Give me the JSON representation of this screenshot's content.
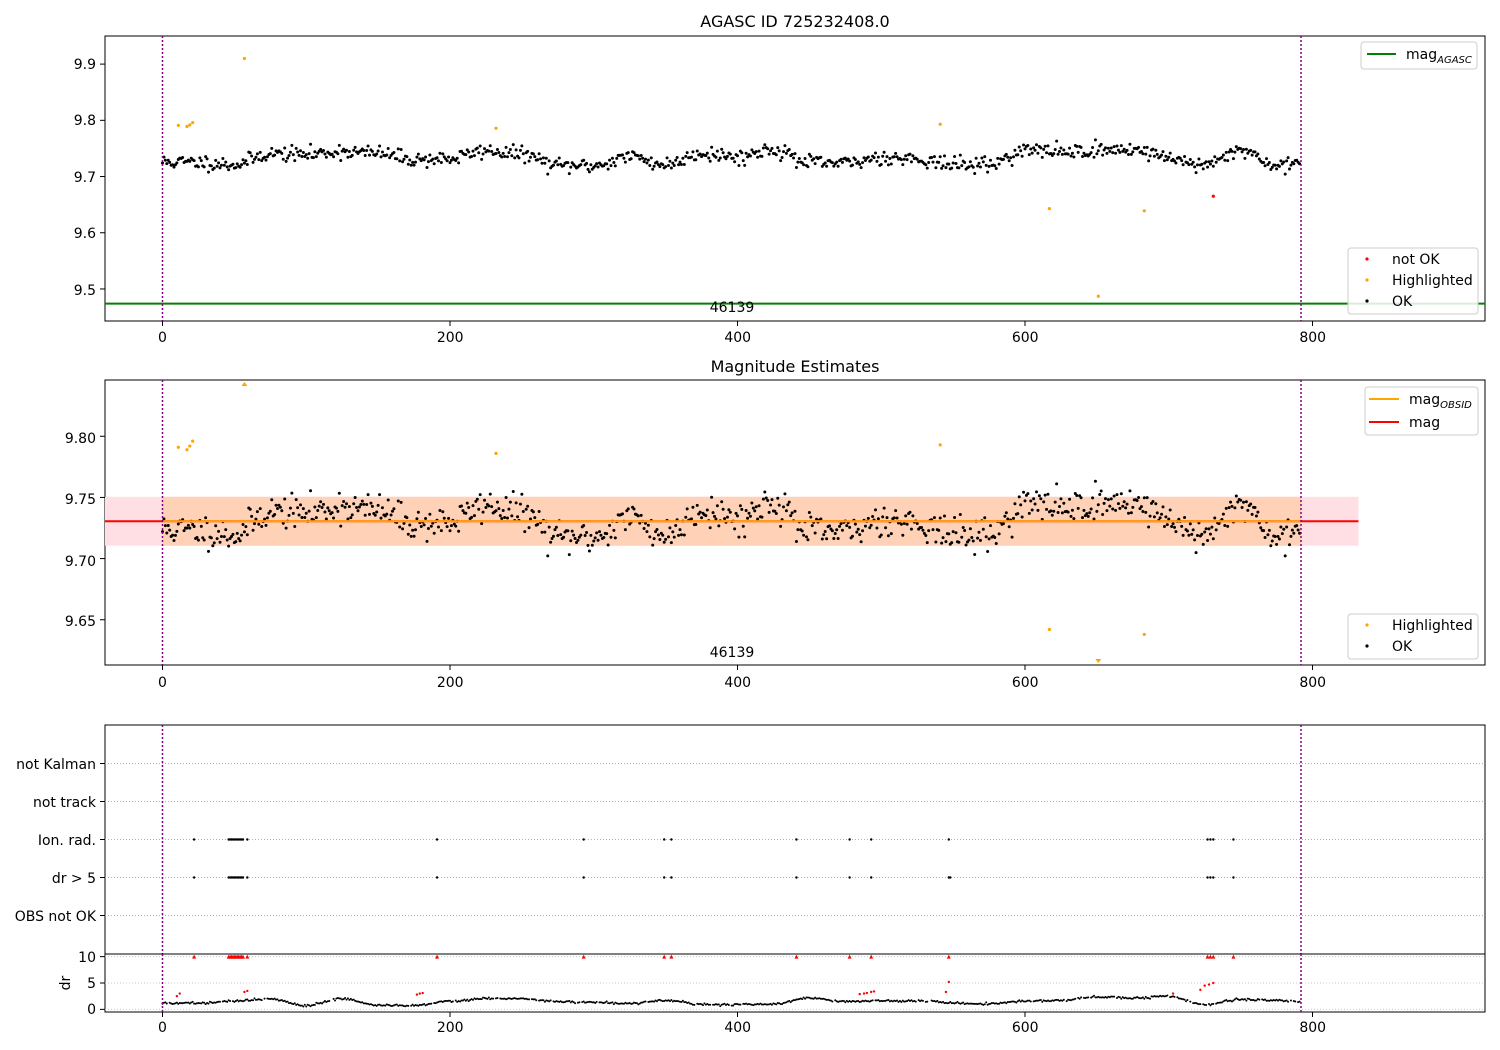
{
  "chart_data": [
    {
      "type": "scatter",
      "title": "AGASC ID 725232408.0",
      "xlim": [
        -40,
        920
      ],
      "ylim": [
        9.443,
        9.95
      ],
      "xticks": [
        0,
        200,
        400,
        600,
        800
      ],
      "yticks": [
        9.5,
        9.6,
        9.7,
        9.8,
        9.9
      ],
      "ytick_decimals": 1,
      "obs_boundaries": [
        0,
        792
      ],
      "obsid_label": {
        "text": "46139",
        "x": 396
      },
      "lines": [
        {
          "name": "mag_AGASC",
          "value": 9.474,
          "x_range": [
            -40,
            920
          ],
          "color": "#008000"
        }
      ],
      "band": null,
      "series": [
        {
          "name": "OK",
          "color": "#000000",
          "n": 792,
          "baseline": 9.733,
          "noise": 0.011,
          "wave_amp": 0.016
        },
        {
          "name": "Highlighted",
          "color": "#ffa500",
          "x": [
            11,
            17,
            19,
            21,
            57,
            232,
            541,
            617,
            651,
            683
          ],
          "y": [
            9.791,
            9.789,
            9.792,
            9.796,
            9.91,
            9.786,
            9.793,
            9.643,
            9.487,
            9.639
          ]
        },
        {
          "name": "not OK",
          "color": "#ff0000",
          "x": [
            731
          ],
          "y": [
            9.665
          ]
        }
      ],
      "legends": [
        {
          "position": "top-right",
          "entries": [
            {
              "label": "mag",
              "sub": "AGASC",
              "color": "#008000",
              "kind": "line"
            }
          ]
        },
        {
          "position": "bottom-right",
          "entries": [
            {
              "label": "not OK",
              "color": "#ff0000",
              "kind": "dot"
            },
            {
              "label": "Highlighted",
              "color": "#ffa500",
              "kind": "dot"
            },
            {
              "label": "OK",
              "color": "#000000",
              "kind": "dot"
            }
          ]
        }
      ]
    },
    {
      "type": "scatter",
      "title": "Magnitude Estimates",
      "xlim": [
        -40,
        920
      ],
      "ylim": [
        9.613,
        9.846
      ],
      "xticks": [
        0,
        200,
        400,
        600,
        800
      ],
      "yticks": [
        9.65,
        9.7,
        9.75,
        9.8
      ],
      "ytick_decimals": 2,
      "obs_boundaries": [
        0,
        792
      ],
      "obsid_label": {
        "text": "46139",
        "x": 396
      },
      "lines": [
        {
          "name": "mag",
          "value": 9.7305,
          "x_range": [
            -40,
            832
          ],
          "color": "#ff0000"
        },
        {
          "name": "mag_OBSID",
          "value": 9.7305,
          "x_range": [
            0,
            792
          ],
          "color": "#ffa500"
        }
      ],
      "band": {
        "low": 9.7105,
        "high": 9.7505,
        "x_range": [
          -40,
          832
        ],
        "inner_x_range": [
          0,
          792
        ]
      },
      "series": [
        {
          "name": "OK",
          "color": "#000000",
          "n": 792,
          "baseline": 9.731,
          "noise": 0.011,
          "wave_amp": 0.016
        },
        {
          "name": "Highlighted",
          "color": "#ffa500",
          "x": [
            11,
            17,
            19,
            21,
            232,
            541,
            617,
            683
          ],
          "y": [
            9.791,
            9.789,
            9.792,
            9.796,
            9.786,
            9.793,
            9.642,
            9.638
          ]
        }
      ],
      "out_of_range": [
        {
          "x": 57,
          "direction": "up",
          "color": "#ffa500"
        },
        {
          "x": 651,
          "direction": "down",
          "color": "#ffa500"
        }
      ],
      "legends": [
        {
          "position": "top-right",
          "entries": [
            {
              "label": "mag",
              "sub": "OBSID",
              "color": "#ffa500",
              "kind": "line"
            },
            {
              "label": "mag",
              "sub": "",
              "color": "#ff0000",
              "kind": "line"
            }
          ]
        },
        {
          "position": "bottom-right",
          "entries": [
            {
              "label": "Highlighted",
              "color": "#ffa500",
              "kind": "dot"
            },
            {
              "label": "OK",
              "color": "#000000",
              "kind": "dot"
            }
          ]
        }
      ]
    },
    {
      "type": "scatter",
      "title": "",
      "xlim": [
        -40,
        920
      ],
      "obs_boundaries": [
        0,
        792
      ],
      "flag_rows": [
        "not Kalman",
        "not track",
        "Ion. rad.",
        "dr > 5",
        "OBS not OK"
      ],
      "flag_events": {
        "Ion. rad.": [
          22,
          46,
          47,
          48,
          49,
          50,
          51,
          52,
          53,
          54,
          55,
          56,
          59,
          191,
          293,
          349,
          354,
          441,
          478,
          493,
          547,
          727,
          729,
          731,
          745
        ],
        "dr > 5": [
          22,
          46,
          47,
          48,
          49,
          50,
          51,
          52,
          53,
          54,
          55,
          56,
          59,
          191,
          293,
          349,
          354,
          441,
          478,
          493,
          547,
          548,
          727,
          729,
          731,
          745
        ]
      }
    },
    {
      "type": "scatter",
      "title": "",
      "ylabel": "dr",
      "xlim": [
        -40,
        920
      ],
      "ylim": [
        -0.5,
        10.5
      ],
      "xticks": [
        0,
        200,
        400,
        600,
        800
      ],
      "yticks": [
        0,
        5,
        10
      ],
      "obs_boundaries": [
        0,
        792
      ],
      "clipped_value": 10,
      "clipped_x": [
        22,
        46,
        47,
        48,
        49,
        50,
        51,
        52,
        53,
        54,
        55,
        56,
        59,
        191,
        293,
        349,
        354,
        441,
        478,
        493,
        547,
        727,
        729,
        731,
        745
      ],
      "red_points": {
        "x": [
          10,
          12,
          57,
          59,
          177,
          179,
          181,
          485,
          488,
          490,
          493,
          495,
          545,
          547,
          703,
          722,
          725,
          728,
          731
        ],
        "y": [
          2.5,
          3.0,
          3.3,
          3.5,
          2.8,
          3.0,
          3.1,
          2.9,
          3.0,
          3.1,
          3.3,
          3.4,
          3.3,
          5.2,
          3.0,
          3.7,
          4.5,
          4.7,
          5.0
        ]
      },
      "dr_profile": {
        "baseline": 1.6,
        "amplitude": 0.9
      }
    }
  ],
  "axes_ticks": {
    "x": [
      "0",
      "200",
      "400",
      "600",
      "800"
    ],
    "top_y": [
      "9.5",
      "9.6",
      "9.7",
      "9.8",
      "9.9"
    ],
    "mid_y": [
      "9.65",
      "9.70",
      "9.75",
      "9.80"
    ],
    "dr_y": [
      "0",
      "5",
      "10"
    ]
  },
  "legend_text": {
    "agasc": {
      "mag": "mag",
      "sub": "AGASC"
    },
    "top_points": [
      "not OK",
      "Highlighted",
      "OK"
    ],
    "obsid": {
      "mag": "mag",
      "sub": "OBSID"
    },
    "mag": "mag",
    "mid_points": [
      "Highlighted",
      "OK"
    ]
  },
  "colors": {
    "ok": "#000000",
    "highlighted": "#ffa500",
    "not_ok": "#ff0000",
    "agasc_line": "#008000",
    "boundary": "#800080",
    "band_outer": "#ffdfe4",
    "band_inner": "#ffd2b8"
  }
}
